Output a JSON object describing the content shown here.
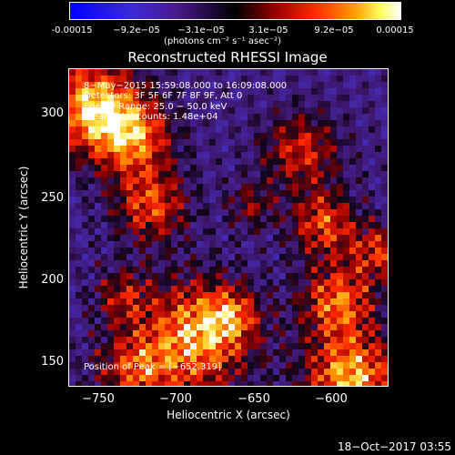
{
  "colorbar": {
    "ticks": [
      "-0.00015",
      "−9.2e−05",
      "−3.1e−05",
      "3.1e−05",
      "9.2e−05",
      "0.00015"
    ],
    "units": "(photons cm⁻² s⁻¹ asec⁻²)"
  },
  "title": "Reconstructed RHESSI Image",
  "annotations": {
    "time": "8−May−2015 15:59:08.000 to 16:09:08.000",
    "detectors": "Detectors: 3F 5F 6F 7F 8F 9F, Att 0",
    "energy": "Energy Range: 25.0 − 50.0 keV",
    "method": "Clean    Total counts: 1.48e+04",
    "peak": "Position of Peak = [−652,319]"
  },
  "axes": {
    "xlabel": "Heliocentric X (arcsec)",
    "ylabel": "Heliocentric Y (arcsec)",
    "xticks": [
      "−750",
      "−700",
      "−650",
      "−600"
    ],
    "yticks": [
      "300",
      "250",
      "200",
      "150"
    ]
  },
  "footer": {
    "date": "18−Oct−2017 03:55"
  }
}
